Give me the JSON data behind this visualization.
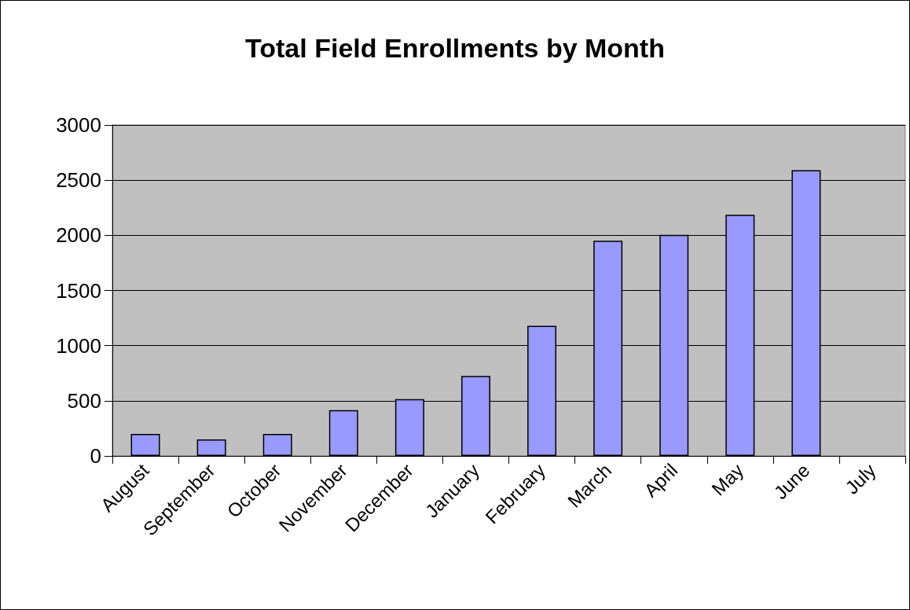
{
  "chart_data": {
    "type": "bar",
    "title": "Total Field Enrollments by Month",
    "categories": [
      "August",
      "September",
      "October",
      "November",
      "December",
      "January",
      "February",
      "March",
      "April",
      "May",
      "June",
      "July"
    ],
    "values": [
      200,
      150,
      200,
      415,
      515,
      725,
      1180,
      1950,
      2005,
      2185,
      2590,
      null
    ],
    "color": "#9999ff",
    "ylim": [
      0,
      3000
    ],
    "yticks": [
      0,
      500,
      1000,
      1500,
      2000,
      2500,
      3000
    ],
    "grid": "y"
  }
}
